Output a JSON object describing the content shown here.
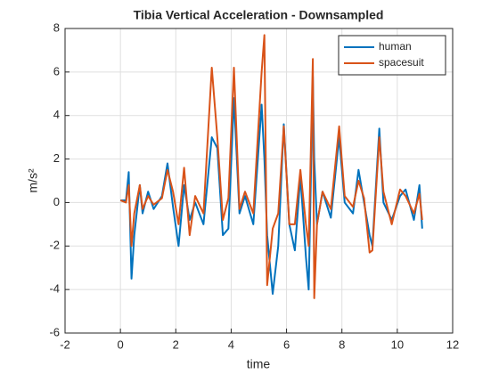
{
  "chart_data": {
    "type": "line",
    "title": "Tibia Vertical Acceleration - Downsampled",
    "xlabel": "time",
    "ylabel": "m/s²",
    "x": [
      0,
      0.2,
      0.3,
      0.4,
      0.5,
      0.7,
      0.8,
      1.0,
      1.2,
      1.5,
      1.7,
      1.9,
      2.1,
      2.3,
      2.5,
      2.7,
      3.0,
      3.3,
      3.5,
      3.7,
      3.9,
      4.1,
      4.3,
      4.5,
      4.8,
      5.1,
      5.2,
      5.3,
      5.5,
      5.7,
      5.9,
      6.1,
      6.3,
      6.5,
      6.7,
      6.8,
      6.95,
      7.0,
      7.1,
      7.3,
      7.6,
      7.9,
      8.1,
      8.4,
      8.6,
      8.8,
      9.0,
      9.1,
      9.35,
      9.5,
      9.8,
      10.1,
      10.3,
      10.6,
      10.8,
      10.9
    ],
    "series": [
      {
        "name": "human",
        "color": "#0072bd",
        "values": [
          0.1,
          0.1,
          1.4,
          -3.5,
          -1.5,
          0.8,
          -0.5,
          0.5,
          -0.3,
          0.3,
          1.8,
          -0.2,
          -2.0,
          0.8,
          -0.8,
          0,
          -1.0,
          3.0,
          2.5,
          -1.5,
          -1.2,
          4.8,
          -0.5,
          0.3,
          -1.0,
          4.5,
          2.0,
          -1.5,
          -4.2,
          -2.0,
          3.6,
          -1.0,
          -2.2,
          1.2,
          -2.5,
          -4.0,
          5.8,
          2.0,
          -1.0,
          0.5,
          -0.7,
          3.0,
          0,
          -0.5,
          1.5,
          0,
          -1.5,
          -2.0,
          3.4,
          0,
          -0.8,
          0.3,
          0.6,
          -0.8,
          0.8,
          -1.2
        ]
      },
      {
        "name": "spacesuit",
        "color": "#d95319",
        "values": [
          0.1,
          0.0,
          0.8,
          -2.0,
          -0.5,
          0.8,
          -0.3,
          0.3,
          -0.1,
          0.2,
          1.5,
          0.5,
          -1.0,
          1.6,
          -1.5,
          0.3,
          -0.5,
          6.2,
          3.0,
          -0.8,
          0.2,
          6.2,
          -0.3,
          0.5,
          -0.5,
          6.0,
          7.7,
          -3.8,
          -1.2,
          -0.5,
          3.5,
          -1.0,
          -1.0,
          1.5,
          -1.0,
          -2.0,
          6.6,
          -4.4,
          -1.0,
          0.5,
          -0.3,
          3.5,
          0.3,
          -0.2,
          1.0,
          0.2,
          -2.3,
          -2.2,
          3.0,
          0.5,
          -1.0,
          0.6,
          0.3,
          -0.5,
          0.4,
          -0.8
        ]
      }
    ],
    "xlim": [
      -2,
      12
    ],
    "xticks": [
      -2,
      0,
      2,
      4,
      6,
      8,
      10,
      12
    ],
    "ylim": [
      -6,
      8
    ],
    "yticks": [
      -6,
      -4,
      -2,
      0,
      2,
      4,
      6,
      8
    ],
    "grid": true,
    "legend": "northeast"
  }
}
